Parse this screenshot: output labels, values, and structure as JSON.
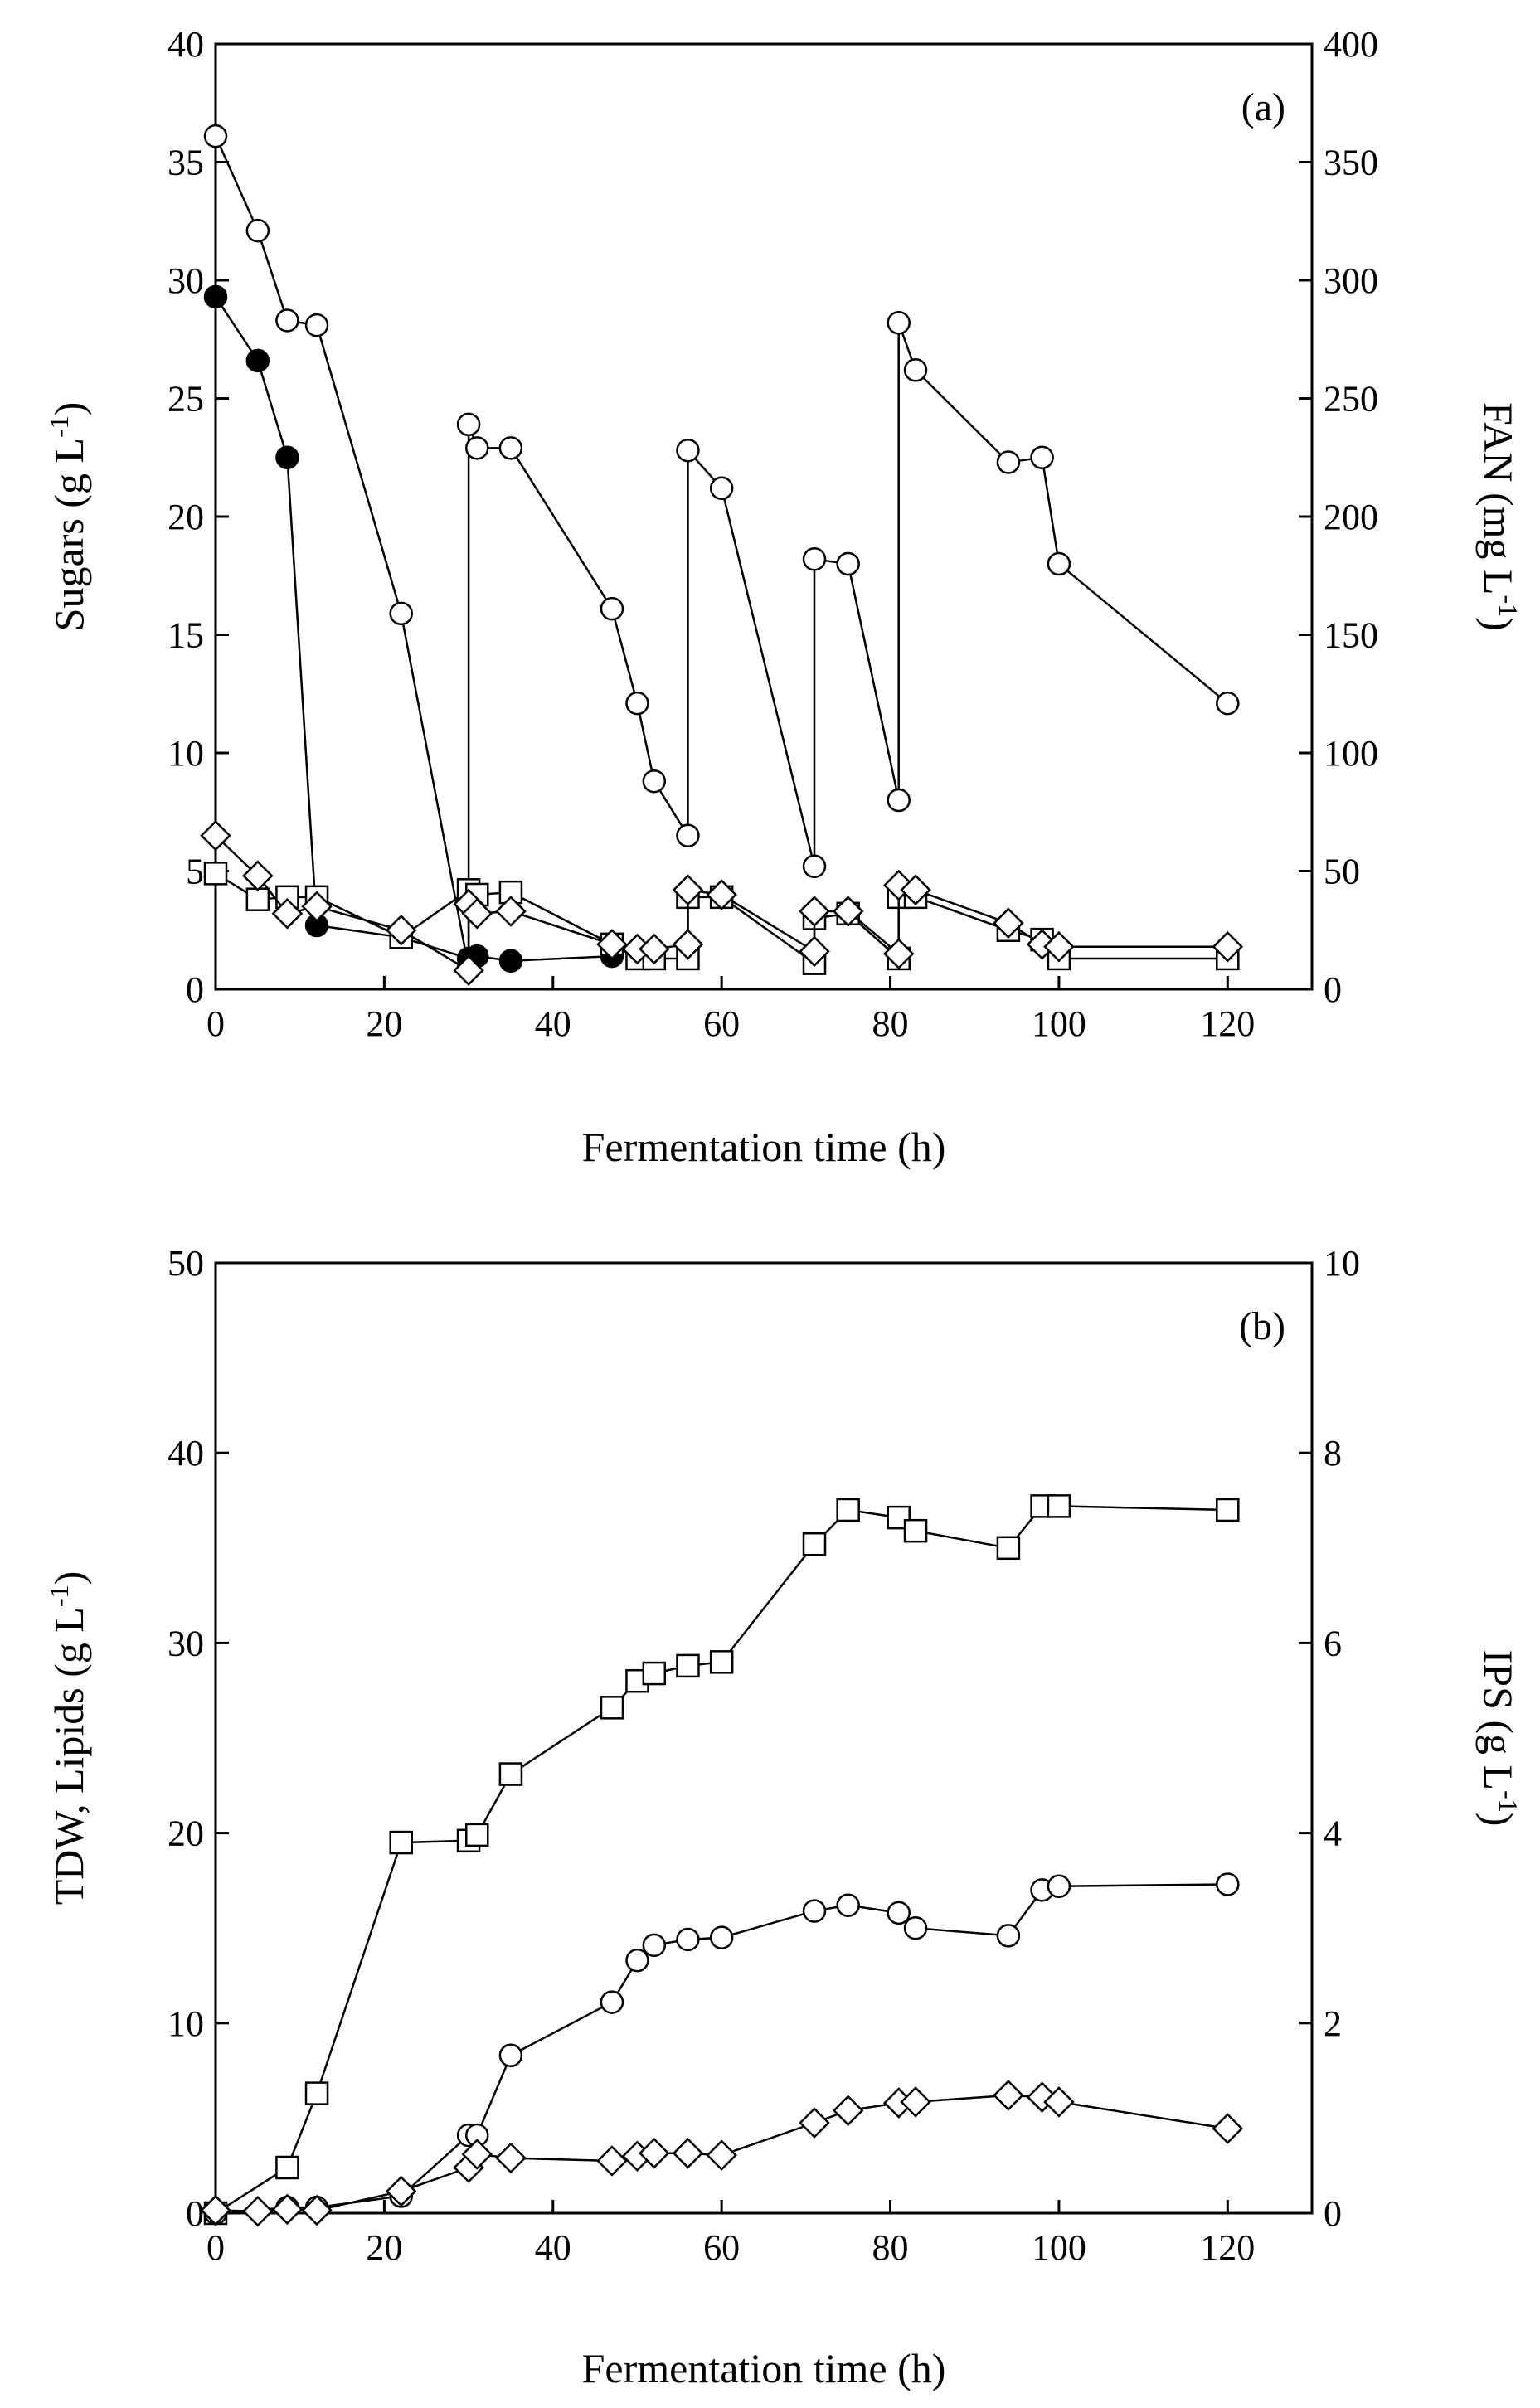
{
  "chart_data": [
    {
      "type": "line",
      "panel_label": "(a)",
      "xlabel": "Fermentation time (h)",
      "ylabel_left": "Sugars (g L",
      "ylabel_left_sup": "-1",
      "ylabel_left_tail": ")",
      "ylabel_right": "FAN (mg L",
      "ylabel_right_sup": "-1",
      "ylabel_right_tail": ")",
      "xlim": [
        0,
        130
      ],
      "ylim_left": [
        0,
        40
      ],
      "ylim_right": [
        0,
        400
      ],
      "x_ticks": [
        "0",
        "20",
        "40",
        "60",
        "80",
        "100",
        "120"
      ],
      "y_left_ticks": [
        "0",
        "5",
        "10",
        "15",
        "20",
        "25",
        "30",
        "35",
        "40"
      ],
      "y_right_ticks": [
        "0",
        "50",
        "100",
        "150",
        "200",
        "250",
        "300",
        "350",
        "400"
      ],
      "series": [
        {
          "name": "Sugars (open circles)",
          "marker": "circle-open",
          "axis": "left",
          "x": [
            0,
            5,
            8.5,
            12,
            22,
            30,
            30,
            31,
            35,
            47,
            50,
            52,
            56,
            56,
            60,
            71,
            71,
            75,
            81,
            81,
            83,
            94,
            98,
            100,
            120
          ],
          "y": [
            36.1,
            32.1,
            28.3,
            28.1,
            15.9,
            0.9,
            23.9,
            22.9,
            22.9,
            16.1,
            12.1,
            8.8,
            6.5,
            22.8,
            21.2,
            5.2,
            18.2,
            18.0,
            8.0,
            28.2,
            26.2,
            22.3,
            22.5,
            18.0,
            12.1
          ]
        },
        {
          "name": "FAN (filled circles)",
          "marker": "circle-filled",
          "axis": "right",
          "x": [
            0,
            5,
            8.5,
            12,
            22,
            30,
            31,
            35,
            47
          ],
          "y": [
            293,
            266,
            225,
            27,
            22,
            13,
            14,
            12,
            14
          ]
        },
        {
          "name": "Open squares",
          "marker": "square-open",
          "axis": "left",
          "x": [
            0,
            5,
            8.5,
            12,
            22,
            30,
            31,
            35,
            47,
            50,
            52,
            56,
            56,
            60,
            71,
            71,
            75,
            81,
            81,
            83,
            94,
            98,
            100,
            120
          ],
          "y": [
            4.9,
            3.8,
            3.9,
            3.9,
            2.2,
            4.2,
            4.0,
            4.1,
            1.9,
            1.3,
            1.3,
            1.3,
            3.9,
            3.9,
            1.1,
            3.0,
            3.2,
            1.3,
            3.9,
            3.9,
            2.5,
            2.1,
            1.3,
            1.3
          ]
        },
        {
          "name": "Open diamonds",
          "marker": "diamond-open",
          "axis": "left",
          "x": [
            0,
            5,
            8.5,
            12,
            22,
            30,
            30,
            31,
            35,
            47,
            50,
            52,
            56,
            56,
            60,
            71,
            71,
            75,
            81,
            81,
            83,
            94,
            98,
            100,
            120
          ],
          "y": [
            6.5,
            4.8,
            3.2,
            3.5,
            2.5,
            0.8,
            3.6,
            3.2,
            3.3,
            1.9,
            1.7,
            1.7,
            1.9,
            4.2,
            4.0,
            1.6,
            3.3,
            3.3,
            1.5,
            4.4,
            4.2,
            2.8,
            1.9,
            1.8,
            1.8
          ]
        }
      ]
    },
    {
      "type": "line",
      "panel_label": "(b)",
      "xlabel": "Fermentation time (h)",
      "ylabel_left": "TDW, Lipids (g L",
      "ylabel_left_sup": "-1",
      "ylabel_left_tail": ")",
      "ylabel_right": "IPS (g L",
      "ylabel_right_sup": "-1",
      "ylabel_right_tail": ")",
      "xlim": [
        0,
        130
      ],
      "ylim_left": [
        0,
        50
      ],
      "ylim_right": [
        0,
        10
      ],
      "x_ticks": [
        "0",
        "20",
        "40",
        "60",
        "80",
        "100",
        "120"
      ],
      "y_left_ticks": [
        "0",
        "10",
        "20",
        "30",
        "40",
        "50"
      ],
      "y_right_ticks": [
        "0",
        "2",
        "4",
        "6",
        "8",
        "10"
      ],
      "series": [
        {
          "name": "TDW (open squares)",
          "marker": "square-open",
          "axis": "left",
          "x": [
            0,
            8.5,
            12,
            22,
            30,
            31,
            35,
            47,
            50,
            52,
            56,
            60,
            71,
            75,
            81,
            83,
            94,
            98,
            100,
            120
          ],
          "y": [
            0,
            2.4,
            6.3,
            19.5,
            19.6,
            19.9,
            23.1,
            26.6,
            28.0,
            28.4,
            28.8,
            29.0,
            35.2,
            37.0,
            36.6,
            35.9,
            35.0,
            37.2,
            37.2,
            37.0
          ]
        },
        {
          "name": "Lipids (open circles)",
          "marker": "circle-open",
          "axis": "left",
          "x": [
            0,
            8.5,
            12,
            22,
            30,
            31,
            35,
            47,
            50,
            52,
            56,
            60,
            71,
            75,
            81,
            83,
            94,
            98,
            100,
            120
          ],
          "y": [
            0,
            0.3,
            0.3,
            0.9,
            4.1,
            4.1,
            8.3,
            11.1,
            13.3,
            14.1,
            14.4,
            14.5,
            15.9,
            16.2,
            15.8,
            15.0,
            14.6,
            17.0,
            17.2,
            17.3
          ]
        },
        {
          "name": "IPS (open diamonds)",
          "marker": "diamond-open",
          "axis": "right",
          "x": [
            0,
            5,
            8.5,
            12,
            22,
            30,
            31,
            35,
            47,
            50,
            52,
            56,
            60,
            71,
            75,
            81,
            83,
            94,
            98,
            100,
            120
          ],
          "y": [
            0.03,
            0.02,
            0.04,
            0.03,
            0.23,
            0.48,
            0.62,
            0.58,
            0.55,
            0.6,
            0.63,
            0.63,
            0.61,
            0.95,
            1.08,
            1.16,
            1.17,
            1.24,
            1.22,
            1.17,
            0.89
          ]
        }
      ]
    }
  ]
}
